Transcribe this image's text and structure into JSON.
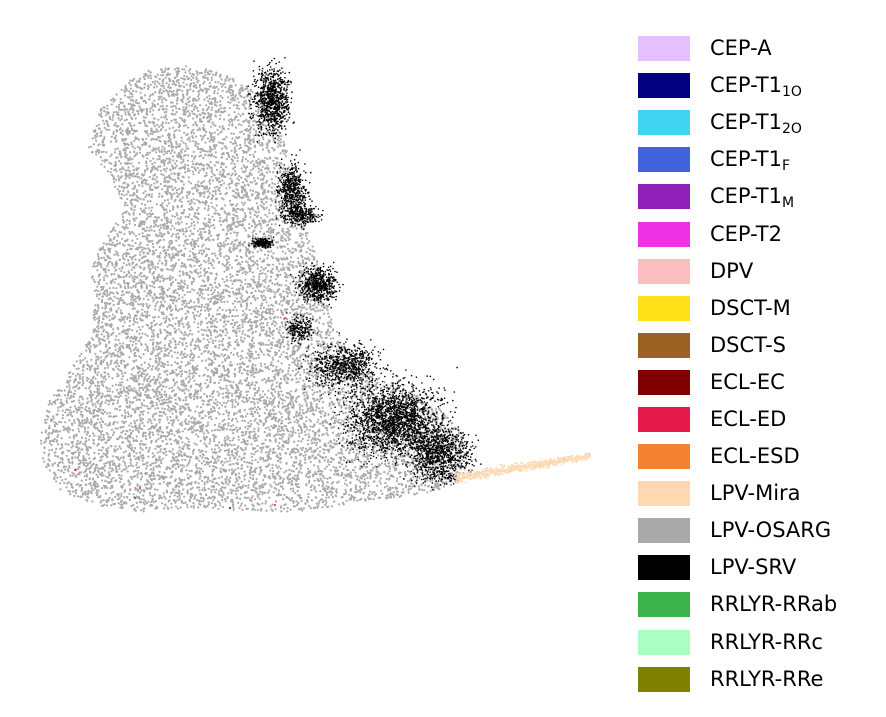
{
  "chart_data": {
    "type": "scatter",
    "title": "",
    "xlabel": "",
    "ylabel": "",
    "axes_visible": false,
    "grid": false,
    "legend_position": "right",
    "series": [
      {
        "name": "CEP-A",
        "base": "CEP-A",
        "sub": "",
        "color": "#e6bfff"
      },
      {
        "name": "CEP-T1_1O",
        "base": "CEP-T1",
        "sub": "1O",
        "color": "#000080"
      },
      {
        "name": "CEP-T1_2O",
        "base": "CEP-T1",
        "sub": "2O",
        "color": "#40d4f2"
      },
      {
        "name": "CEP-T1_F",
        "base": "CEP-T1",
        "sub": "F",
        "color": "#4163d9"
      },
      {
        "name": "CEP-T1_M",
        "base": "CEP-T1",
        "sub": "M",
        "color": "#9120b8"
      },
      {
        "name": "CEP-T2",
        "base": "CEP-T2",
        "sub": "",
        "color": "#f032e6"
      },
      {
        "name": "DPV",
        "base": "DPV",
        "sub": "",
        "color": "#fabebe"
      },
      {
        "name": "DSCT-M",
        "base": "DSCT-M",
        "sub": "",
        "color": "#ffe119"
      },
      {
        "name": "DSCT-S",
        "base": "DSCT-S",
        "sub": "",
        "color": "#9a6324"
      },
      {
        "name": "ECL-EC",
        "base": "ECL-EC",
        "sub": "",
        "color": "#800000"
      },
      {
        "name": "ECL-ED",
        "base": "ECL-ED",
        "sub": "",
        "color": "#e6194b"
      },
      {
        "name": "ECL-ESD",
        "base": "ECL-ESD",
        "sub": "",
        "color": "#f58231"
      },
      {
        "name": "LPV-Mira",
        "base": "LPV-Mira",
        "sub": "",
        "color": "#ffd8b1"
      },
      {
        "name": "LPV-OSARG",
        "base": "LPV-OSARG",
        "sub": "",
        "color": "#a9a9a9"
      },
      {
        "name": "LPV-SRV",
        "base": "LPV-SRV",
        "sub": "",
        "color": "#000000"
      },
      {
        "name": "RRLYR-RRab",
        "base": "RRLYR-RRab",
        "sub": "",
        "color": "#3cb44b"
      },
      {
        "name": "RRLYR-RRc",
        "base": "RRLYR-RRc",
        "sub": "",
        "color": "#aaffc3"
      },
      {
        "name": "RRLYR-RRe",
        "base": "RRLYR-RRe",
        "sub": "",
        "color": "#808000"
      }
    ]
  }
}
